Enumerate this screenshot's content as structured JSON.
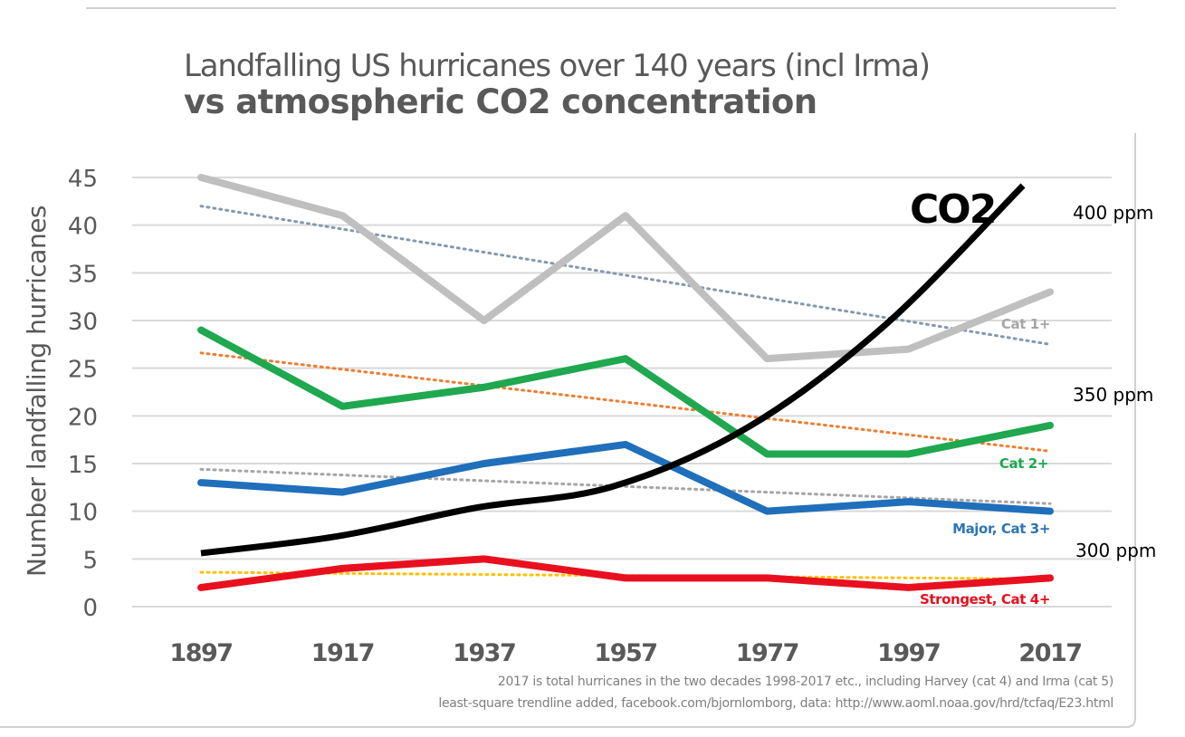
{
  "chart_data": {
    "type": "line",
    "title": "Landfalling US hurricanes over 140 years (incl Irma)",
    "subtitle": "vs atmospheric CO2 concentration",
    "xlabel": "",
    "ylabel": "Number landfalling hurricanes",
    "ylim": [
      0,
      45
    ],
    "yticks": [
      "0",
      "5",
      "10",
      "15",
      "20",
      "25",
      "30",
      "35",
      "40",
      "45"
    ],
    "ytick_values": [
      0,
      5,
      10,
      15,
      20,
      25,
      30,
      35,
      40,
      45
    ],
    "categories": [
      "1897",
      "1917",
      "1937",
      "1957",
      "1977",
      "1997",
      "2017"
    ],
    "grid": true,
    "series": [
      {
        "name": "Cat 1+",
        "color": "#bfbfbf",
        "label_color": "#a6a6a6",
        "values": [
          45,
          41,
          30,
          41,
          26,
          27,
          33
        ],
        "trend": {
          "start": 42,
          "end": 27.5,
          "color": "#8497b0"
        }
      },
      {
        "name": "Cat 2+",
        "color": "#1fa84f",
        "label_color": "#1fa84f",
        "values": [
          29,
          21,
          23,
          26,
          16,
          16,
          19
        ],
        "trend": {
          "start": 26.6,
          "end": 16.3,
          "color": "#ed7d31"
        }
      },
      {
        "name": "Major, Cat 3+",
        "color": "#1f6fba",
        "label_color": "#2e75b6",
        "values": [
          13,
          12,
          15,
          17,
          10,
          11,
          10
        ],
        "trend": {
          "start": 14.4,
          "end": 10.8,
          "color": "#a5a5a5"
        }
      },
      {
        "name": "Strongest, Cat 4+",
        "color": "#e8101f",
        "label_color": "#e8101f",
        "values": [
          2,
          4,
          5,
          3,
          3,
          2,
          3
        ],
        "trend": {
          "start": 3.6,
          "end": 2.9,
          "color": "#ffc000"
        }
      }
    ],
    "co2": {
      "label": "CO2",
      "color": "#000000",
      "axis_labels": [
        "400 ppm",
        "350 ppm",
        "300 ppm"
      ],
      "axis_values": [
        400,
        350,
        300
      ],
      "points_ppm": [
        {
          "year": 1897,
          "ppm": 295
        },
        {
          "year": 1917,
          "ppm": 302
        },
        {
          "year": 1937,
          "ppm": 310
        },
        {
          "year": 1957,
          "ppm": 316
        },
        {
          "year": 1977,
          "ppm": 333
        },
        {
          "year": 1997,
          "ppm": 363
        },
        {
          "year": 2017,
          "ppm": 405
        }
      ]
    },
    "notes": [
      "2017 is total hurricanes  in the two decades 1998-2017 etc., including  Harvey (cat 4) and Irma (cat 5)",
      "least-square trendline  added, facebook.com/bjornlomborg,  data: http://www.aoml.noaa.gov/hrd/tcfaq/E23.html"
    ]
  }
}
